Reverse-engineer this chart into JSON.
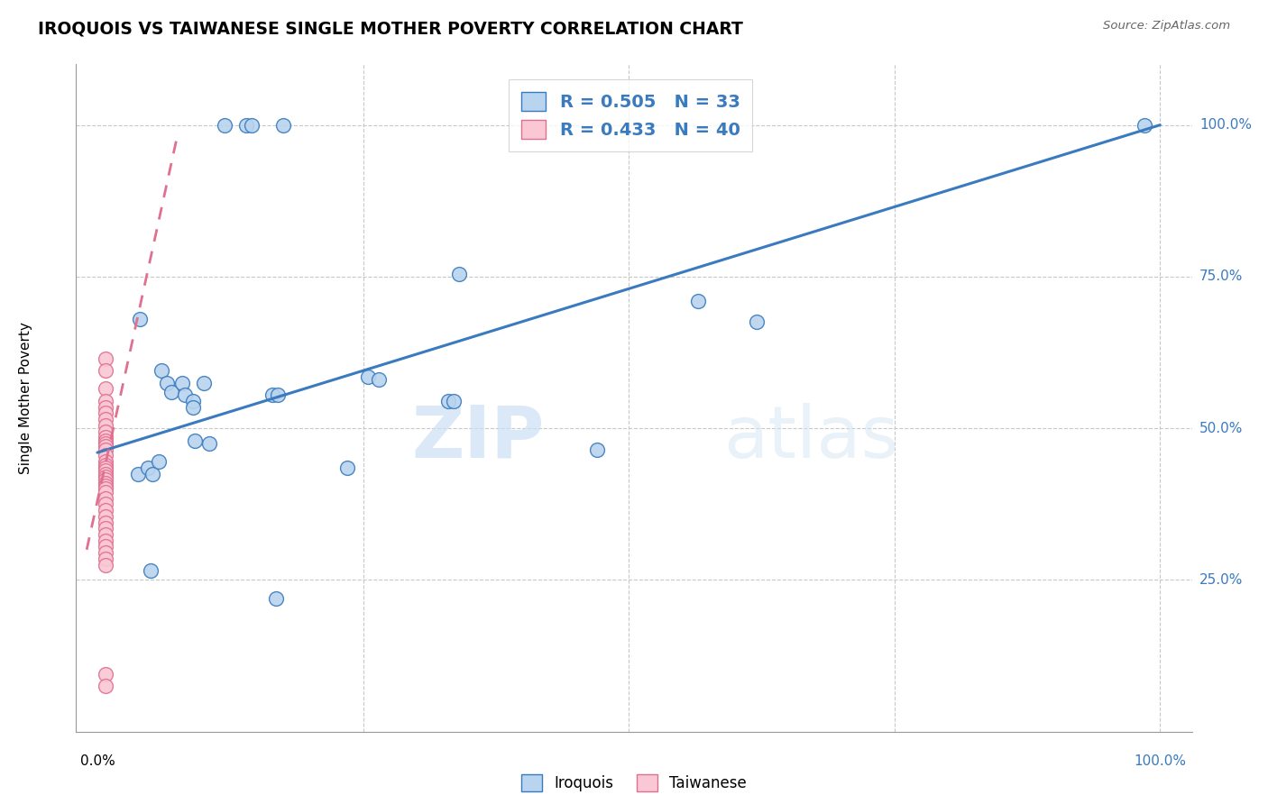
{
  "title": "IROQUOIS VS TAIWANESE SINGLE MOTHER POVERTY CORRELATION CHART",
  "source": "Source: ZipAtlas.com",
  "ylabel": "Single Mother Poverty",
  "iroquois_R": 0.505,
  "iroquois_N": 33,
  "taiwanese_R": 0.433,
  "taiwanese_N": 40,
  "iroquois_color": "#b8d4ee",
  "iroquois_line_color": "#3a7abf",
  "taiwanese_color": "#f9c8d4",
  "taiwanese_line_color": "#e07090",
  "watermark_zip": "ZIP",
  "watermark_atlas": "atlas",
  "iroquois_x": [
    0.12,
    0.14,
    0.145,
    0.175,
    0.04,
    0.06,
    0.065,
    0.07,
    0.08,
    0.082,
    0.09,
    0.09,
    0.092,
    0.1,
    0.105,
    0.165,
    0.17,
    0.33,
    0.335,
    0.34,
    0.47,
    0.565,
    0.62,
    0.985,
    0.038,
    0.048,
    0.052,
    0.058,
    0.235,
    0.255,
    0.265,
    0.168,
    0.05
  ],
  "iroquois_y": [
    1.0,
    1.0,
    1.0,
    1.0,
    0.68,
    0.595,
    0.575,
    0.56,
    0.575,
    0.555,
    0.545,
    0.535,
    0.48,
    0.575,
    0.475,
    0.555,
    0.555,
    0.545,
    0.545,
    0.755,
    0.465,
    0.71,
    0.675,
    1.0,
    0.425,
    0.435,
    0.425,
    0.445,
    0.435,
    0.585,
    0.58,
    0.22,
    0.265
  ],
  "taiwanese_x": [
    0.008,
    0.008,
    0.008,
    0.008,
    0.008,
    0.008,
    0.008,
    0.008,
    0.008,
    0.008,
    0.008,
    0.008,
    0.008,
    0.008,
    0.008,
    0.008,
    0.008,
    0.008,
    0.008,
    0.008,
    0.008,
    0.008,
    0.008,
    0.008,
    0.008,
    0.008,
    0.008,
    0.008,
    0.008,
    0.008,
    0.008,
    0.008,
    0.008,
    0.008,
    0.008,
    0.008,
    0.008,
    0.008,
    0.008,
    0.008
  ],
  "taiwanese_y": [
    0.615,
    0.595,
    0.565,
    0.545,
    0.535,
    0.525,
    0.515,
    0.505,
    0.495,
    0.485,
    0.48,
    0.475,
    0.47,
    0.465,
    0.455,
    0.445,
    0.44,
    0.435,
    0.43,
    0.425,
    0.42,
    0.415,
    0.41,
    0.405,
    0.4,
    0.395,
    0.385,
    0.375,
    0.365,
    0.355,
    0.345,
    0.335,
    0.325,
    0.315,
    0.305,
    0.295,
    0.285,
    0.275,
    0.095,
    0.075
  ],
  "iroquois_line_x": [
    0.0,
    1.0
  ],
  "iroquois_line_y": [
    0.46,
    1.0
  ],
  "taiwanese_line_x": [
    -0.01,
    0.075
  ],
  "taiwanese_line_y": [
    0.3,
    0.98
  ],
  "y_ticks": [
    0.25,
    0.5,
    0.75,
    1.0
  ],
  "y_tick_labels": [
    "25.0%",
    "50.0%",
    "75.0%",
    "100.0%"
  ],
  "x_tick_labels_left": "0.0%",
  "x_tick_labels_right": "100.0%",
  "xlim": [
    -0.02,
    1.03
  ],
  "ylim": [
    0.0,
    1.1
  ],
  "legend_labels": [
    "Iroquois",
    "Taiwanese"
  ]
}
